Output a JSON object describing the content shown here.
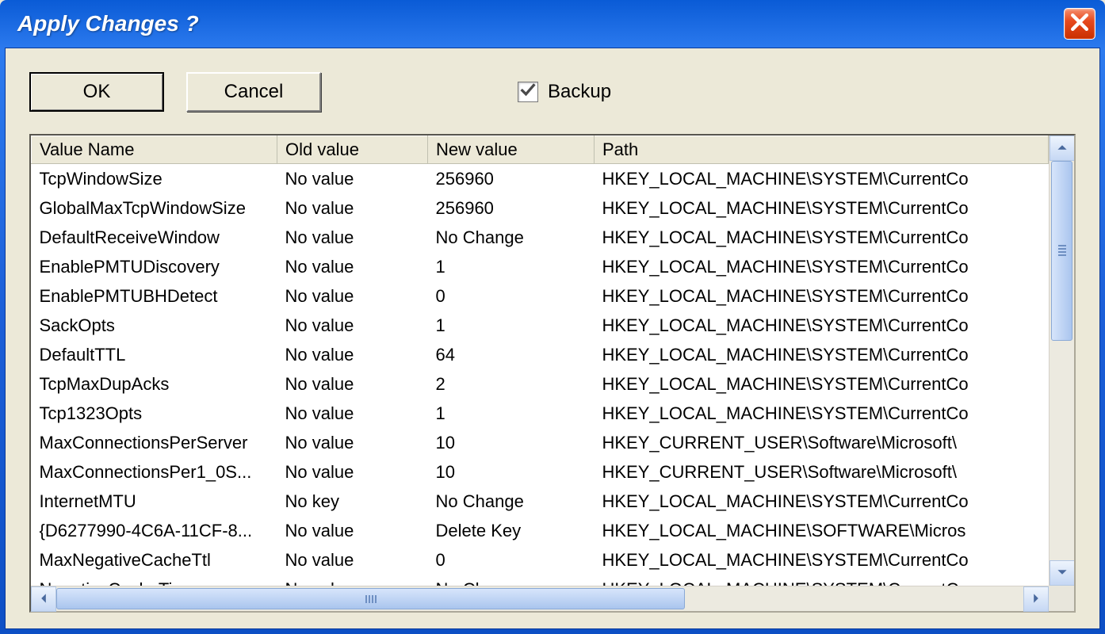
{
  "window": {
    "title": "Apply Changes ?"
  },
  "toolbar": {
    "ok_label": "OK",
    "cancel_label": "Cancel",
    "backup_label": "Backup",
    "backup_checked": true
  },
  "columns": {
    "name": "Value Name",
    "old": "Old value",
    "new": "New value",
    "path": "Path"
  },
  "rows": [
    {
      "name": "TcpWindowSize",
      "old": "No value",
      "new": "256960",
      "path": "HKEY_LOCAL_MACHINE\\SYSTEM\\CurrentCo"
    },
    {
      "name": "GlobalMaxTcpWindowSize",
      "old": "No value",
      "new": "256960",
      "path": "HKEY_LOCAL_MACHINE\\SYSTEM\\CurrentCo"
    },
    {
      "name": "DefaultReceiveWindow",
      "old": "No value",
      "new": "No Change",
      "path": "HKEY_LOCAL_MACHINE\\SYSTEM\\CurrentCo"
    },
    {
      "name": "EnablePMTUDiscovery",
      "old": "No value",
      "new": "1",
      "path": "HKEY_LOCAL_MACHINE\\SYSTEM\\CurrentCo"
    },
    {
      "name": "EnablePMTUBHDetect",
      "old": "No value",
      "new": "0",
      "path": "HKEY_LOCAL_MACHINE\\SYSTEM\\CurrentCo"
    },
    {
      "name": "SackOpts",
      "old": "No value",
      "new": "1",
      "path": "HKEY_LOCAL_MACHINE\\SYSTEM\\CurrentCo"
    },
    {
      "name": "DefaultTTL",
      "old": "No value",
      "new": "64",
      "path": "HKEY_LOCAL_MACHINE\\SYSTEM\\CurrentCo"
    },
    {
      "name": "TcpMaxDupAcks",
      "old": "No value",
      "new": "2",
      "path": "HKEY_LOCAL_MACHINE\\SYSTEM\\CurrentCo"
    },
    {
      "name": "Tcp1323Opts",
      "old": "No value",
      "new": "1",
      "path": "HKEY_LOCAL_MACHINE\\SYSTEM\\CurrentCo"
    },
    {
      "name": "MaxConnectionsPerServer",
      "old": "No value",
      "new": "10",
      "path": "HKEY_CURRENT_USER\\Software\\Microsoft\\"
    },
    {
      "name": "MaxConnectionsPer1_0S...",
      "old": "No value",
      "new": "10",
      "path": "HKEY_CURRENT_USER\\Software\\Microsoft\\"
    },
    {
      "name": "InternetMTU",
      "old": "No key",
      "new": "No Change",
      "path": "HKEY_LOCAL_MACHINE\\SYSTEM\\CurrentCo"
    },
    {
      "name": "{D6277990-4C6A-11CF-8...",
      "old": "No value",
      "new": "Delete Key",
      "path": "HKEY_LOCAL_MACHINE\\SOFTWARE\\Micros"
    },
    {
      "name": "MaxNegativeCacheTtl",
      "old": "No value",
      "new": "0",
      "path": "HKEY_LOCAL_MACHINE\\SYSTEM\\CurrentCo"
    },
    {
      "name": "NegativeCacheTime",
      "old": "No value",
      "new": "No Change",
      "path": "HKEY_LOCAL_MACHINE\\SYSTEM\\CurrentCo"
    }
  ]
}
